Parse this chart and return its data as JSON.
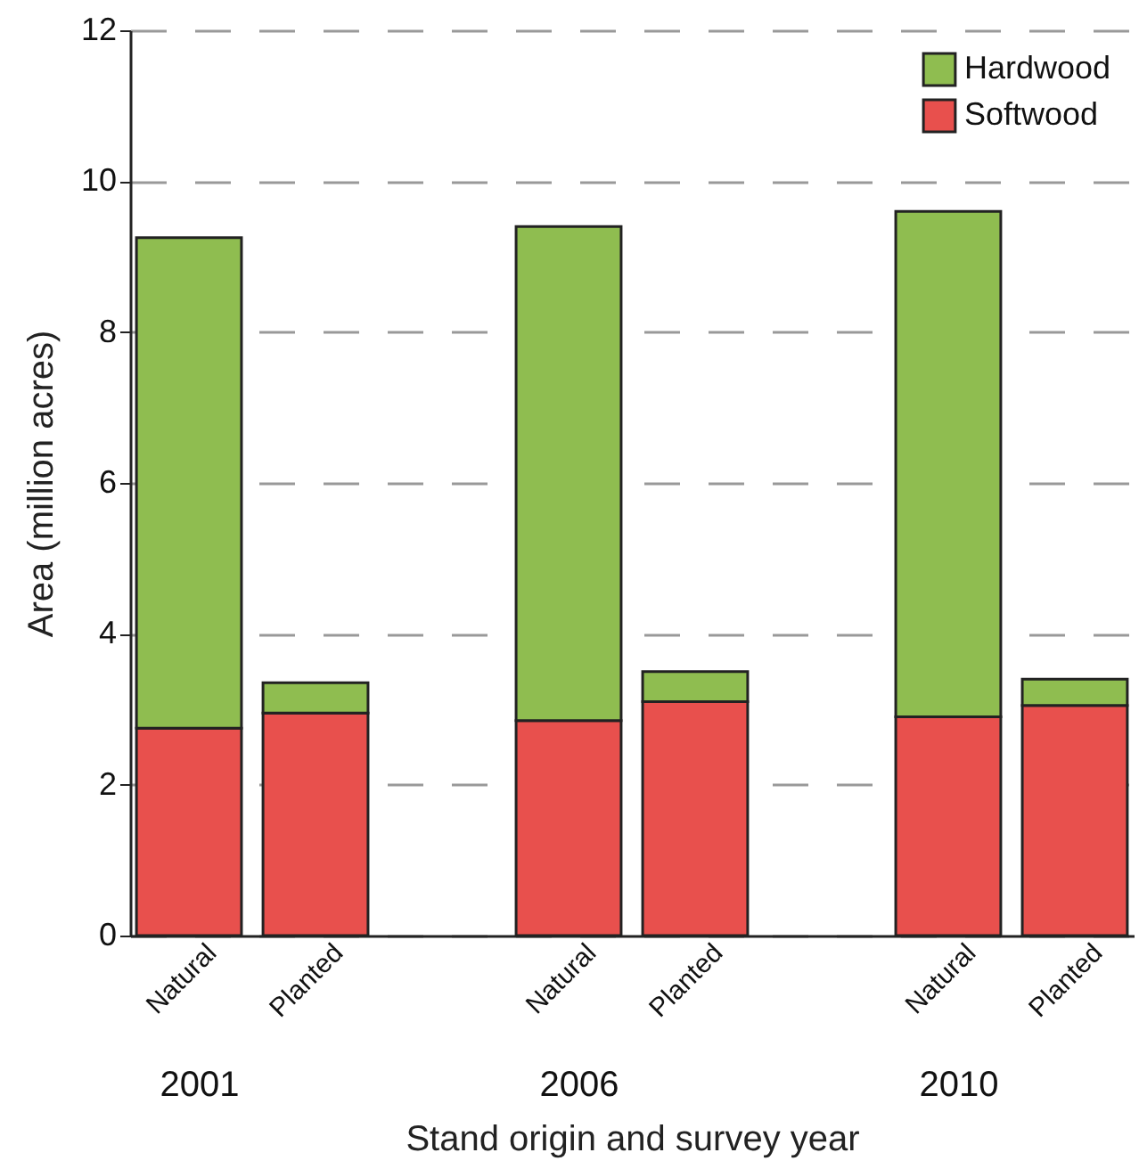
{
  "chart_data": {
    "type": "bar",
    "stacked": true,
    "xlabel": "Stand origin and survey year",
    "ylabel": "Area (million acres)",
    "categories": [
      "Natural",
      "Planted",
      null,
      "Natural",
      "Planted",
      null,
      "Natural",
      "Planted"
    ],
    "annotations": [
      "2001",
      "2006",
      "2010"
    ],
    "series": [
      {
        "name": "Softwood",
        "color": "#e8504d",
        "values": [
          2.75,
          2.95,
          null,
          2.85,
          3.1,
          null,
          2.9,
          3.05
        ]
      },
      {
        "name": "Hardwood",
        "color": "#8fbd50",
        "values": [
          6.5,
          0.4,
          null,
          6.55,
          0.4,
          null,
          6.7,
          0.35
        ]
      }
    ],
    "ylim": [
      0,
      12
    ],
    "yticks": [
      0,
      2,
      4,
      6,
      8,
      10,
      12
    ],
    "grid": "y",
    "legend": "top right"
  }
}
